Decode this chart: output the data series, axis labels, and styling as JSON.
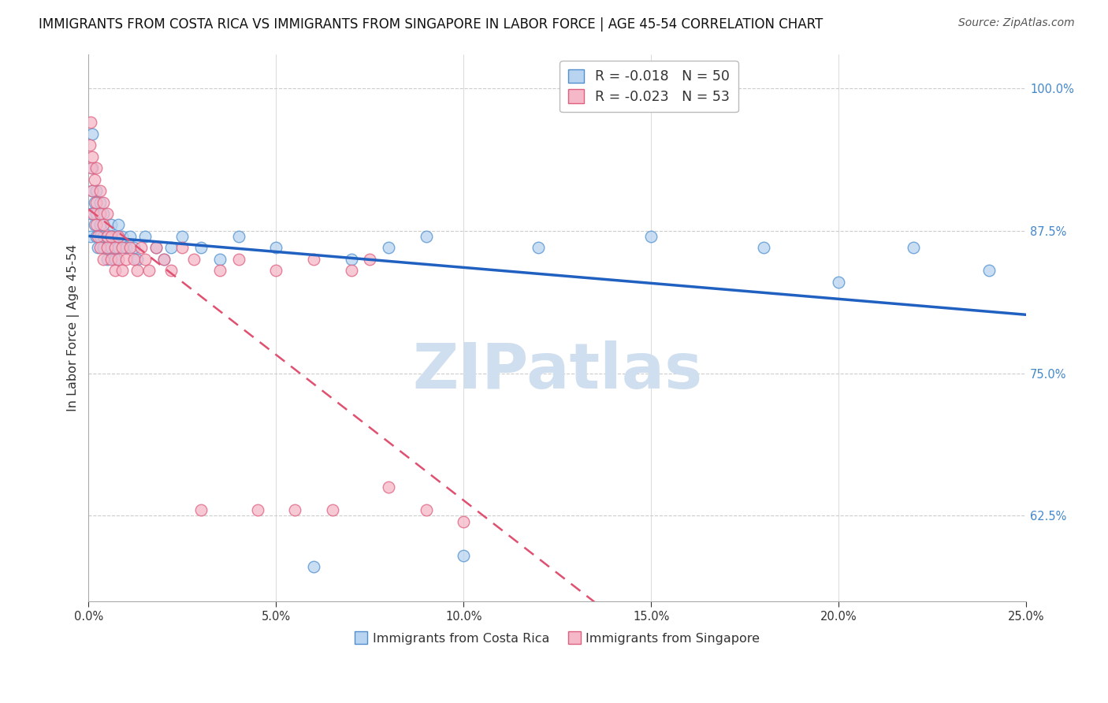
{
  "title": "IMMIGRANTS FROM COSTA RICA VS IMMIGRANTS FROM SINGAPORE IN LABOR FORCE | AGE 45-54 CORRELATION CHART",
  "source": "Source: ZipAtlas.com",
  "legend_bottom": [
    "Immigrants from Costa Rica",
    "Immigrants from Singapore"
  ],
  "ylabel": "In Labor Force | Age 45-54",
  "xlim": [
    0.0,
    0.25
  ],
  "ylim": [
    0.55,
    1.03
  ],
  "yticks": [
    0.625,
    0.75,
    0.875,
    1.0
  ],
  "xticks": [
    0.0,
    0.05,
    0.1,
    0.15,
    0.2,
    0.25
  ],
  "costa_rica_R": -0.018,
  "costa_rica_N": 50,
  "singapore_R": -0.023,
  "singapore_N": 53,
  "blue_fill": "#b8d4f0",
  "blue_edge": "#5090d0",
  "pink_fill": "#f5b8c8",
  "pink_edge": "#e06080",
  "blue_line_color": "#2060c0",
  "pink_line_color": "#e05070",
  "watermark_text": "ZIPatlas",
  "watermark_color": "#d0dff0",
  "title_fontsize": 12,
  "source_fontsize": 10,
  "tick_label_color": "#4488cc",
  "costa_rica_x": [
    0.0005,
    0.0005,
    0.001,
    0.001,
    0.001,
    0.0015,
    0.0015,
    0.002,
    0.002,
    0.002,
    0.0025,
    0.003,
    0.003,
    0.003,
    0.004,
    0.004,
    0.004,
    0.005,
    0.005,
    0.006,
    0.006,
    0.007,
    0.007,
    0.008,
    0.008,
    0.009,
    0.01,
    0.011,
    0.012,
    0.013,
    0.015,
    0.018,
    0.02,
    0.022,
    0.025,
    0.03,
    0.035,
    0.04,
    0.05,
    0.06,
    0.07,
    0.08,
    0.09,
    0.1,
    0.12,
    0.15,
    0.18,
    0.2,
    0.22,
    0.24
  ],
  "costa_rica_y": [
    0.87,
    0.89,
    0.91,
    0.93,
    0.96,
    0.88,
    0.9,
    0.87,
    0.89,
    0.91,
    0.86,
    0.87,
    0.88,
    0.9,
    0.86,
    0.87,
    0.89,
    0.85,
    0.87,
    0.86,
    0.88,
    0.85,
    0.87,
    0.86,
    0.88,
    0.87,
    0.86,
    0.87,
    0.86,
    0.85,
    0.87,
    0.86,
    0.85,
    0.86,
    0.87,
    0.86,
    0.85,
    0.87,
    0.86,
    0.58,
    0.85,
    0.86,
    0.87,
    0.59,
    0.86,
    0.87,
    0.86,
    0.83,
    0.86,
    0.84
  ],
  "singapore_x": [
    0.0003,
    0.0005,
    0.0008,
    0.001,
    0.001,
    0.0012,
    0.0015,
    0.002,
    0.002,
    0.002,
    0.0025,
    0.003,
    0.003,
    0.003,
    0.004,
    0.004,
    0.004,
    0.005,
    0.005,
    0.005,
    0.006,
    0.006,
    0.007,
    0.007,
    0.008,
    0.008,
    0.009,
    0.009,
    0.01,
    0.011,
    0.012,
    0.013,
    0.014,
    0.015,
    0.016,
    0.018,
    0.02,
    0.022,
    0.025,
    0.028,
    0.03,
    0.035,
    0.04,
    0.045,
    0.05,
    0.055,
    0.06,
    0.065,
    0.07,
    0.075,
    0.08,
    0.09,
    0.1
  ],
  "singapore_y": [
    0.95,
    0.97,
    0.93,
    0.91,
    0.94,
    0.89,
    0.92,
    0.9,
    0.88,
    0.93,
    0.87,
    0.89,
    0.91,
    0.86,
    0.88,
    0.9,
    0.85,
    0.87,
    0.89,
    0.86,
    0.85,
    0.87,
    0.84,
    0.86,
    0.85,
    0.87,
    0.86,
    0.84,
    0.85,
    0.86,
    0.85,
    0.84,
    0.86,
    0.85,
    0.84,
    0.86,
    0.85,
    0.84,
    0.86,
    0.85,
    0.63,
    0.84,
    0.85,
    0.63,
    0.84,
    0.63,
    0.85,
    0.63,
    0.84,
    0.85,
    0.65,
    0.63,
    0.62
  ]
}
